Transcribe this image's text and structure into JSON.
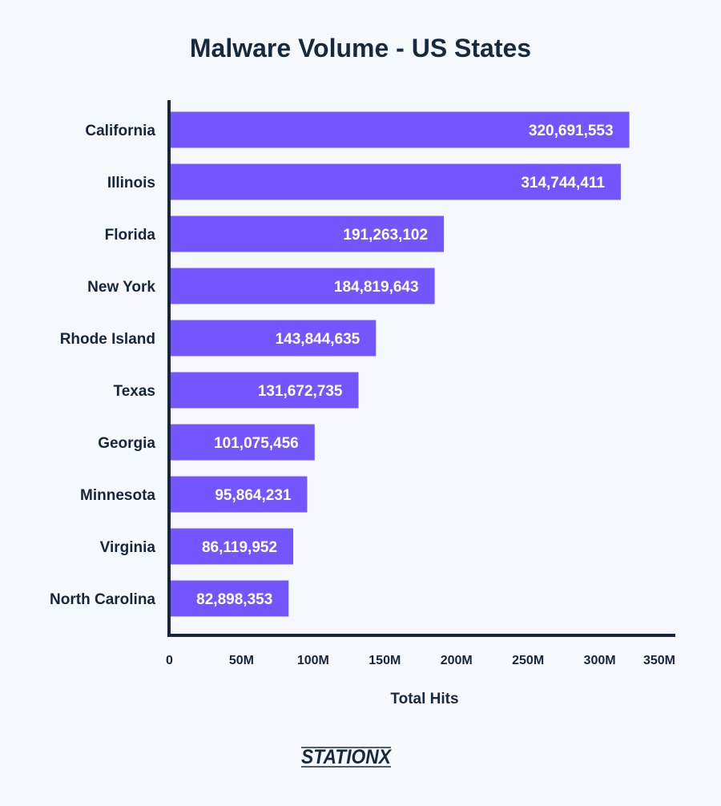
{
  "chart_data": {
    "type": "bar",
    "orientation": "horizontal",
    "title": "Malware Volume - US States",
    "xlabel": "Total Hits",
    "ylabel": "",
    "categories": [
      "California",
      "Illinois",
      "Florida",
      "New York",
      "Rhode Island",
      "Texas",
      "Georgia",
      "Minnesota",
      "Virginia",
      "North Carolina"
    ],
    "values": [
      320691553,
      314744411,
      191263102,
      184819643,
      143844635,
      131672735,
      101075456,
      95864231,
      86119952,
      82898353
    ],
    "value_labels": [
      "320,691,553",
      "314,744,411",
      "191,263,102",
      "184,819,643",
      "143,844,635",
      "131,672,735",
      "101,075,456",
      "95,864,231",
      "86,119,952",
      "82,898,353"
    ],
    "xlim": [
      0,
      350000000
    ],
    "x_ticks": [
      0,
      50000000,
      100000000,
      150000000,
      200000000,
      250000000,
      300000000,
      350000000
    ],
    "x_tick_labels": [
      "0",
      "50M",
      "100M",
      "150M",
      "200M",
      "250M",
      "300M",
      "350M"
    ],
    "grid": false,
    "legend": "none",
    "colors": {
      "bar": "#7356ff",
      "axis": "#16263a",
      "text": "#16263a",
      "label_text": "#ffffff"
    }
  },
  "logo": {
    "text": "STATIONX"
  }
}
